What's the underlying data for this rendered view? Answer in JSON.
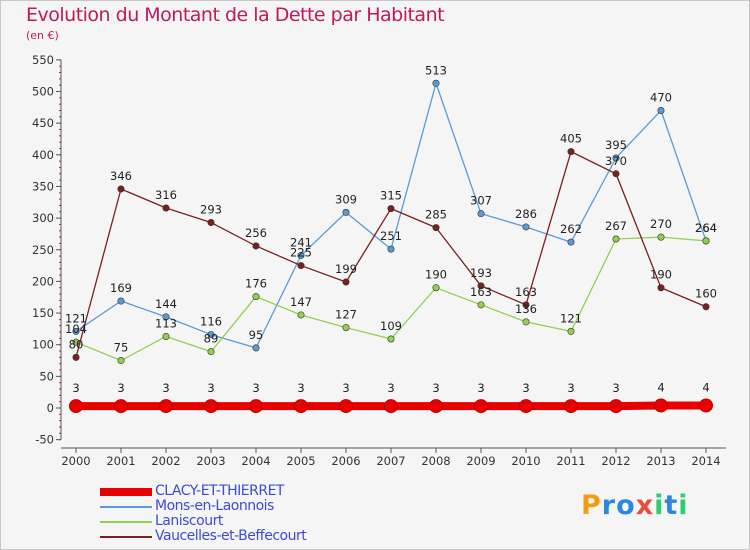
{
  "header": {
    "title": "Evolution du Montant de la Dette par Habitant",
    "subtitle": "(en €)"
  },
  "brand": {
    "text": "Proxiti",
    "letters": [
      "P",
      "r",
      "o",
      "x",
      "i",
      "t",
      "i"
    ],
    "colors": [
      "#f39c12",
      "#2e86de",
      "#2e86de",
      "#e74c3c",
      "#2ecc71",
      "#2e86de",
      "#2ecc71"
    ]
  },
  "chart_data": {
    "type": "line",
    "title": "Evolution du Montant de la Dette par Habitant",
    "subtitle": "(en €)",
    "x": [
      "2000",
      "2001",
      "2002",
      "2003",
      "2004",
      "2005",
      "2006",
      "2007",
      "2008",
      "2009",
      "2010",
      "2011",
      "2012",
      "2013",
      "2014"
    ],
    "ylim": [
      -50,
      550
    ],
    "yticks": [
      "-50",
      "0",
      "50",
      "100",
      "150",
      "200",
      "250",
      "300",
      "350",
      "400",
      "450",
      "500",
      "550"
    ],
    "grid": false,
    "legend_position": "bottom-left",
    "series": [
      {
        "name": "CLACY-ET-THIERRET",
        "color": "#e60000",
        "values": [
          3,
          3,
          3,
          3,
          3,
          3,
          3,
          3,
          3,
          3,
          3,
          3,
          3,
          4,
          4
        ],
        "labels": [
          "3",
          "3",
          "3",
          "3",
          "3",
          "3",
          "3",
          "3",
          "3",
          "3",
          "3",
          "3",
          "3",
          "4",
          "4"
        ]
      },
      {
        "name": "Mons-en-Laonnois",
        "color": "#5b9bd5",
        "values": [
          121,
          169,
          144,
          116,
          95,
          241,
          309,
          251,
          513,
          307,
          286,
          262,
          395,
          470,
          264
        ],
        "labels": [
          "121",
          "169",
          "144",
          "116",
          "95",
          "241",
          "309",
          "251",
          "513",
          "307",
          "286",
          "262",
          "395",
          "470",
          "264"
        ]
      },
      {
        "name": "Laniscourt",
        "color": "#92d050",
        "values": [
          104,
          75,
          113,
          89,
          176,
          147,
          127,
          109,
          190,
          163,
          136,
          121,
          267,
          270,
          264
        ],
        "labels": [
          "104",
          "75",
          "113",
          "89",
          "176",
          "147",
          "127",
          "109",
          "190",
          "163",
          "136",
          "121",
          "267",
          "270",
          "264"
        ]
      },
      {
        "name": "Vaucelles-et-Beffecourt",
        "color": "#7b1f1f",
        "values": [
          80,
          346,
          316,
          293,
          256,
          225,
          199,
          315,
          285,
          193,
          163,
          405,
          370,
          190,
          160
        ],
        "labels": [
          "80",
          "346",
          "316",
          "293",
          "256",
          "225",
          "199",
          "315",
          "285",
          "193",
          "163",
          "405",
          "370",
          "190",
          "160"
        ]
      }
    ]
  },
  "legend": {
    "items": [
      {
        "label": "CLACY-ET-THIERRET",
        "color": "#e60000"
      },
      {
        "label": "Mons-en-Laonnois",
        "color": "#5b9bd5"
      },
      {
        "label": "Laniscourt",
        "color": "#92d050"
      },
      {
        "label": "Vaucelles-et-Beffecourt",
        "color": "#7b1f1f"
      }
    ]
  }
}
